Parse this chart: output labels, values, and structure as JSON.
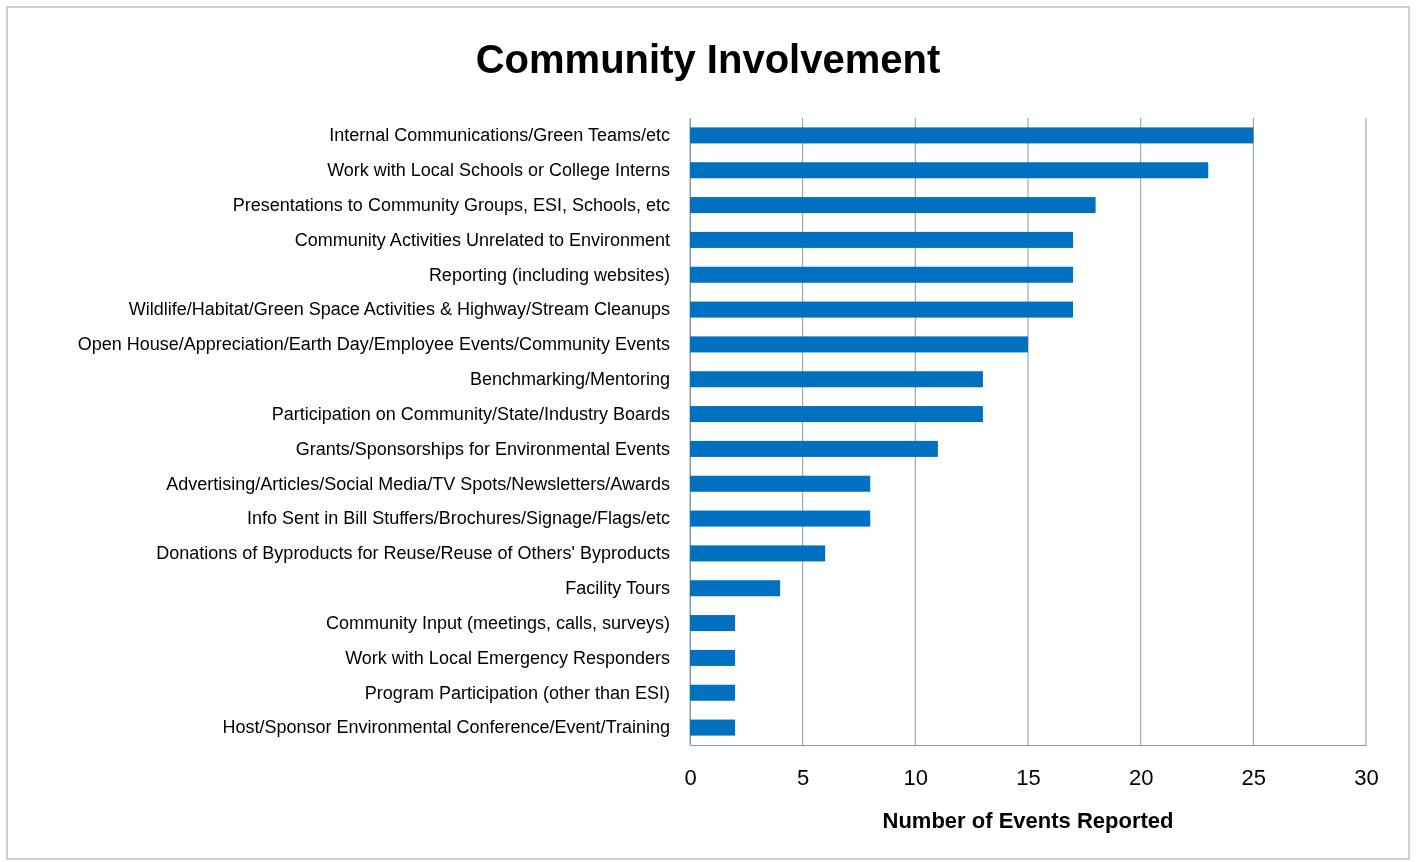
{
  "chart_data": {
    "type": "bar",
    "orientation": "horizontal",
    "title": "Community Involvement",
    "xlabel": "Number of Events Reported",
    "categories": [
      "Internal Communications/Green Teams/etc",
      "Work with Local Schools or College Interns",
      "Presentations to Community Groups, ESI, Schools, etc",
      "Community Activities Unrelated to Environment",
      "Reporting (including websites)",
      "Wildlife/Habitat/Green Space Activities & Highway/Stream Cleanups",
      "Open House/Appreciation/Earth Day/Employee Events/Community Events",
      "Benchmarking/Mentoring",
      "Participation on Community/State/Industry Boards",
      "Grants/Sponsorships for Environmental Events",
      "Advertising/Articles/Social Media/TV Spots/Newsletters/Awards",
      "Info Sent in Bill Stuffers/Brochures/Signage/Flags/etc",
      "Donations of Byproducts for Reuse/Reuse of Others' Byproducts",
      "Facility Tours",
      "Community Input (meetings, calls, surveys)",
      "Work with Local Emergency Responders",
      "Program Participation (other than ESI)",
      "Host/Sponsor Environmental Conference/Event/Training"
    ],
    "values": [
      25,
      23,
      18,
      17,
      17,
      17,
      15,
      13,
      13,
      11,
      8,
      8,
      6,
      4,
      2,
      2,
      2,
      2
    ],
    "color": "#0070c0",
    "xlim": [
      0,
      30
    ],
    "xticks": [
      0,
      5,
      10,
      15,
      20,
      25,
      30
    ],
    "grid": "x"
  }
}
